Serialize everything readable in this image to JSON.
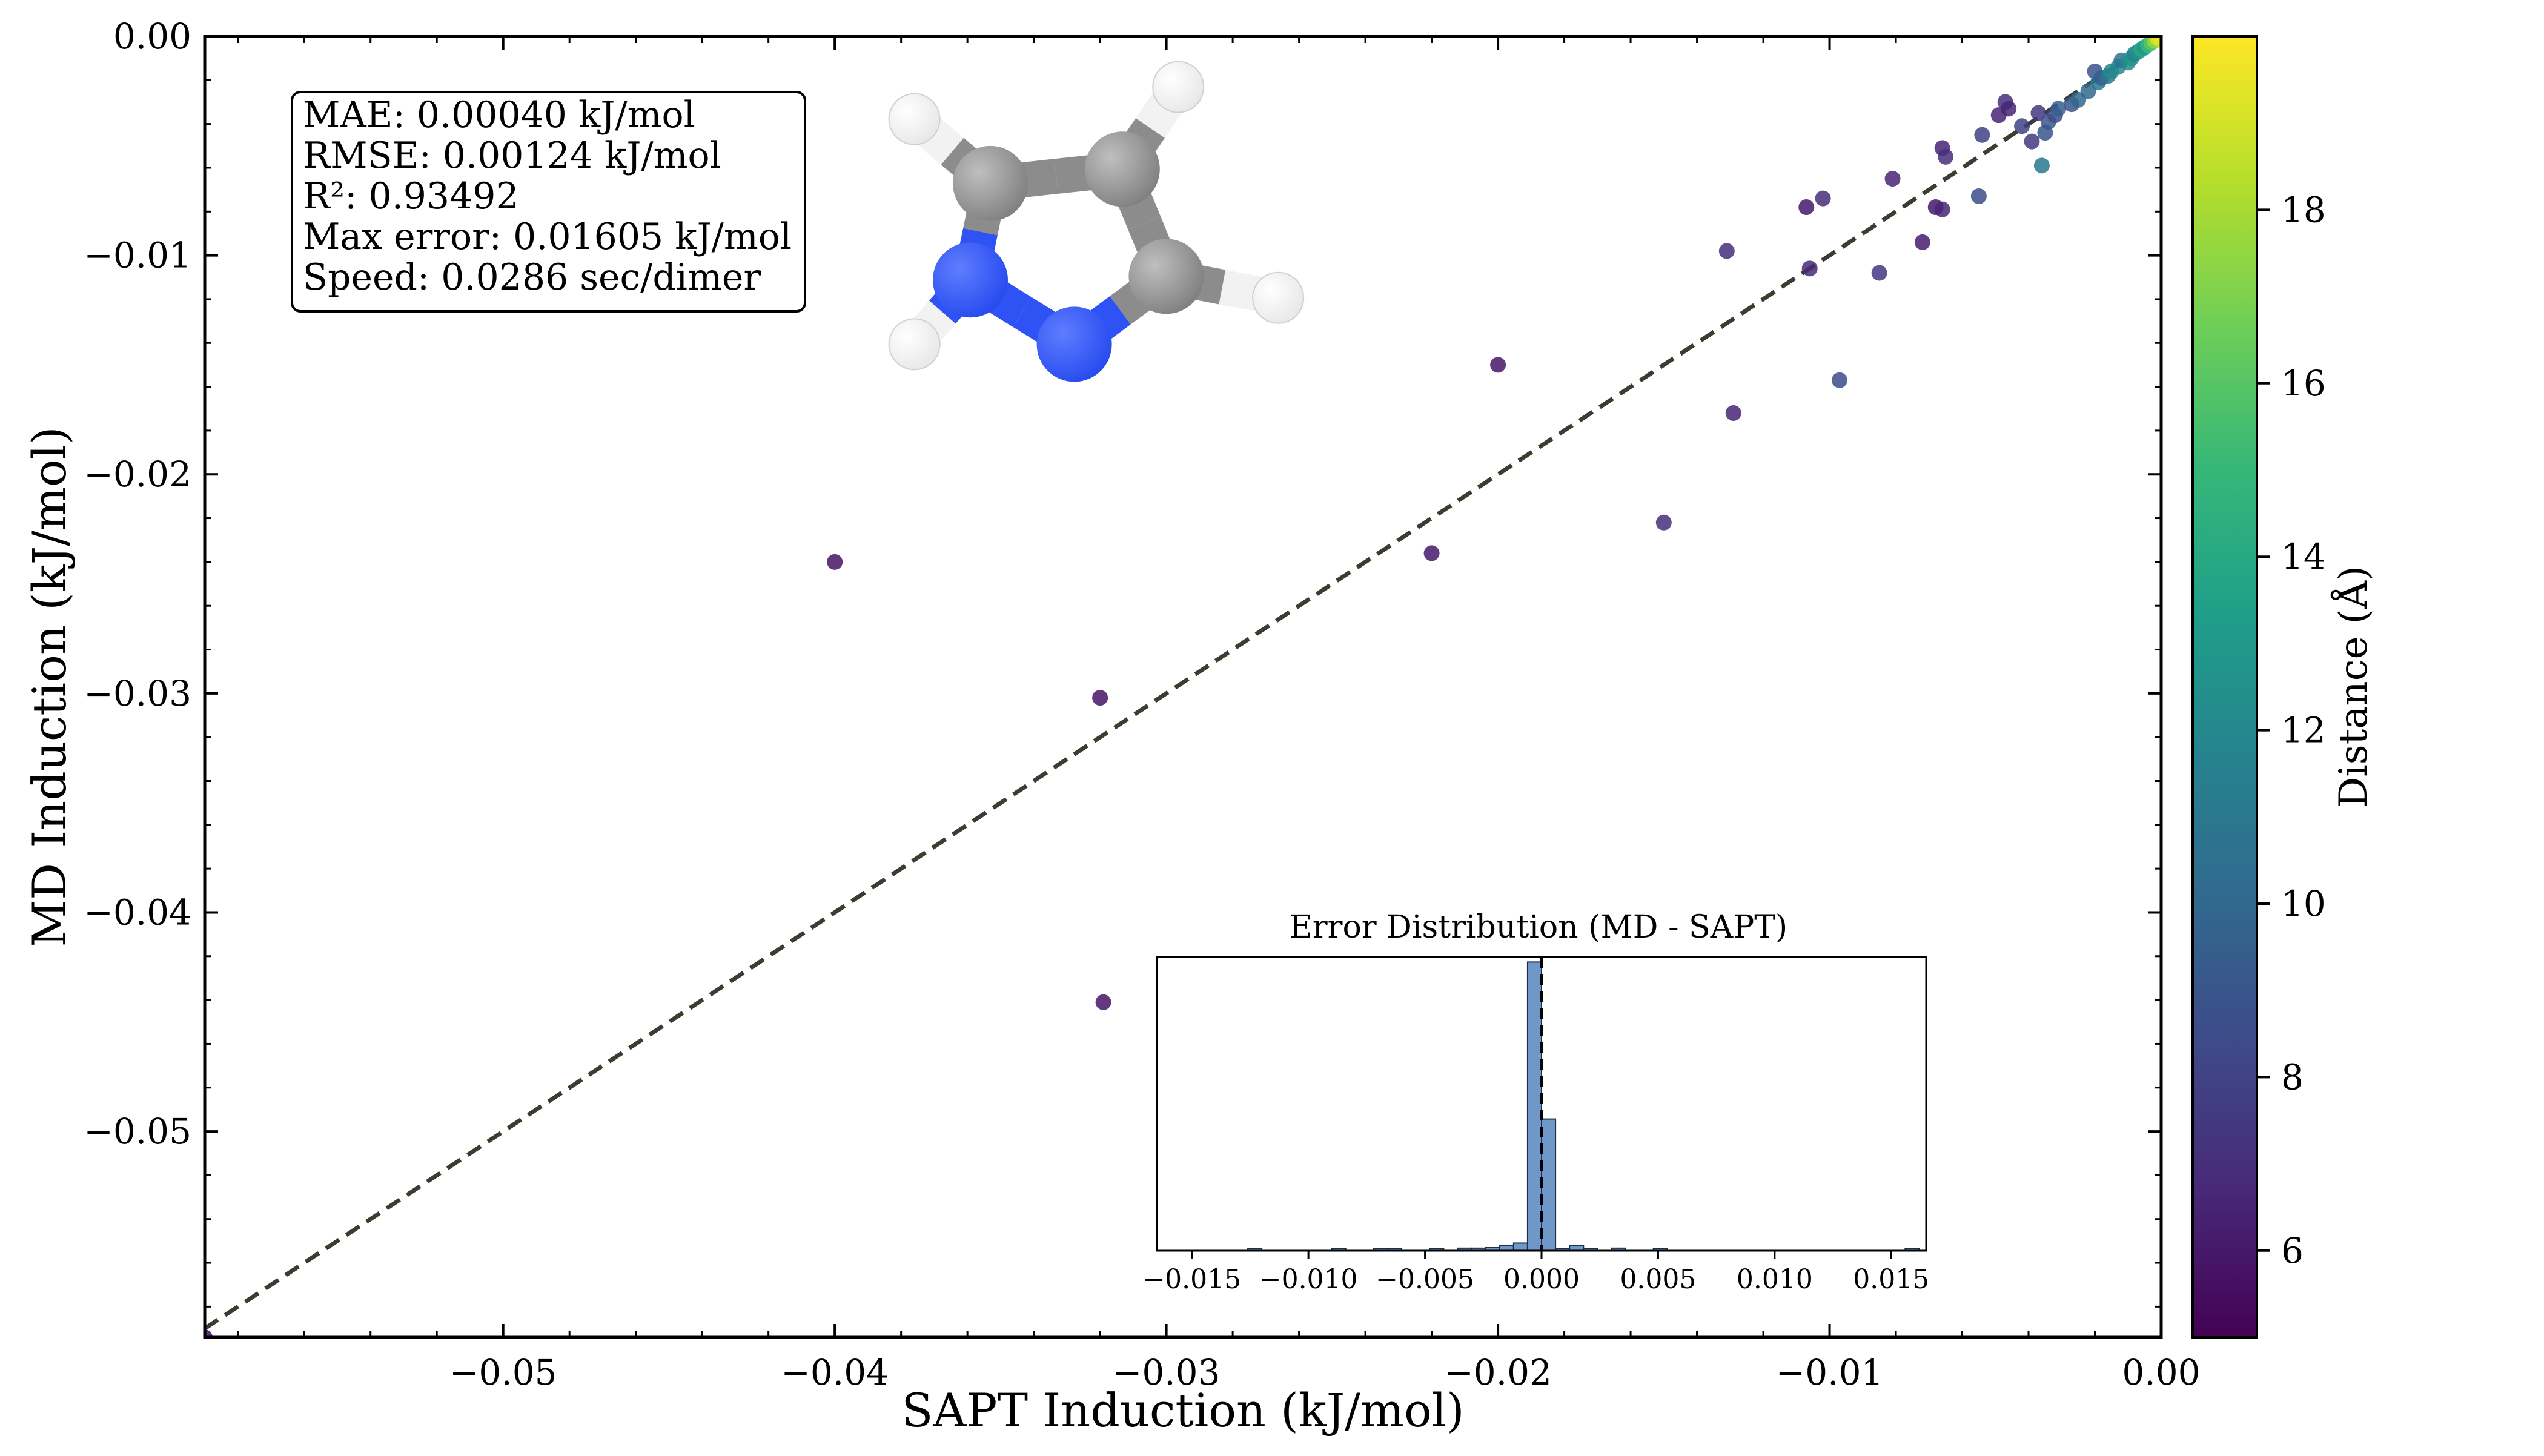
{
  "chart_data": {
    "type": "scatter",
    "xlabel": "SAPT Induction (kJ/mol)",
    "ylabel": "MD Induction (kJ/mol)",
    "xlim": [
      -0.059,
      0.0
    ],
    "ylim": [
      -0.0594,
      0.0
    ],
    "x_ticks": [
      {
        "v": -0.05,
        "label": "−0.05"
      },
      {
        "v": -0.04,
        "label": "−0.04"
      },
      {
        "v": -0.03,
        "label": "−0.03"
      },
      {
        "v": -0.02,
        "label": "−0.02"
      },
      {
        "v": -0.01,
        "label": "−0.01"
      },
      {
        "v": 0.0,
        "label": "0.00"
      }
    ],
    "y_ticks": [
      {
        "v": 0.0,
        "label": "0.00"
      },
      {
        "v": -0.01,
        "label": "−0.01"
      },
      {
        "v": -0.02,
        "label": "−0.02"
      },
      {
        "v": -0.03,
        "label": "−0.03"
      },
      {
        "v": -0.04,
        "label": "−0.04"
      },
      {
        "v": -0.05,
        "label": "−0.05"
      }
    ],
    "grid": false,
    "reference_line": "y = x",
    "colorbar": {
      "label": "Distance (Å)",
      "range": [
        5,
        20
      ],
      "colormap": "viridis",
      "ticks": [
        {
          "v": 6,
          "label": "6"
        },
        {
          "v": 8,
          "label": "8"
        },
        {
          "v": 10,
          "label": "10"
        },
        {
          "v": 12,
          "label": "12"
        },
        {
          "v": 14,
          "label": "14"
        },
        {
          "v": 16,
          "label": "16"
        },
        {
          "v": 18,
          "label": "18"
        }
      ]
    },
    "points": [
      {
        "x": -0.059,
        "y": -0.0594,
        "d": 5.5
      },
      {
        "x": -0.04,
        "y": -0.024,
        "d": 5.8
      },
      {
        "x": -0.032,
        "y": -0.0302,
        "d": 5.8
      },
      {
        "x": -0.0319,
        "y": -0.0441,
        "d": 5.9
      },
      {
        "x": -0.022,
        "y": -0.0236,
        "d": 6.0
      },
      {
        "x": -0.02,
        "y": -0.015,
        "d": 5.9
      },
      {
        "x": -0.015,
        "y": -0.0222,
        "d": 7.0
      },
      {
        "x": -0.0131,
        "y": -0.0098,
        "d": 7.0
      },
      {
        "x": -0.0129,
        "y": -0.0172,
        "d": 6.5
      },
      {
        "x": -0.0107,
        "y": -0.0078,
        "d": 6.0
      },
      {
        "x": -0.0106,
        "y": -0.0106,
        "d": 6.8
      },
      {
        "x": -0.0102,
        "y": -0.0074,
        "d": 7.0
      },
      {
        "x": -0.0097,
        "y": -0.0157,
        "d": 8.5
      },
      {
        "x": -0.0085,
        "y": -0.0108,
        "d": 7.5
      },
      {
        "x": -0.0081,
        "y": -0.0065,
        "d": 6.5
      },
      {
        "x": -0.0072,
        "y": -0.0094,
        "d": 6.2
      },
      {
        "x": -0.0068,
        "y": -0.0078,
        "d": 6.0
      },
      {
        "x": -0.0066,
        "y": -0.0079,
        "d": 6.5
      },
      {
        "x": -0.0066,
        "y": -0.0051,
        "d": 6.5
      },
      {
        "x": -0.0065,
        "y": -0.0055,
        "d": 7.0
      },
      {
        "x": -0.0055,
        "y": -0.0073,
        "d": 8.5
      },
      {
        "x": -0.0054,
        "y": -0.0045,
        "d": 8.0
      },
      {
        "x": -0.0049,
        "y": -0.0036,
        "d": 6.5
      },
      {
        "x": -0.0047,
        "y": -0.003,
        "d": 7.0
      },
      {
        "x": -0.0046,
        "y": -0.0033,
        "d": 6.5
      },
      {
        "x": -0.0042,
        "y": -0.0041,
        "d": 8.0
      },
      {
        "x": -0.0039,
        "y": -0.0048,
        "d": 7.5
      },
      {
        "x": -0.0037,
        "y": -0.0035,
        "d": 7.5
      },
      {
        "x": -0.0036,
        "y": -0.0059,
        "d": 11.0
      },
      {
        "x": -0.0035,
        "y": -0.0044,
        "d": 9.0
      },
      {
        "x": -0.0034,
        "y": -0.0039,
        "d": 9.0
      },
      {
        "x": -0.0032,
        "y": -0.0036,
        "d": 8.5
      },
      {
        "x": -0.0031,
        "y": -0.0033,
        "d": 9.5
      },
      {
        "x": -0.0027,
        "y": -0.0031,
        "d": 9.0
      },
      {
        "x": -0.0025,
        "y": -0.0029,
        "d": 10.0
      },
      {
        "x": -0.0022,
        "y": -0.0025,
        "d": 10.0
      },
      {
        "x": -0.002,
        "y": -0.0016,
        "d": 9.0
      },
      {
        "x": -0.0019,
        "y": -0.0021,
        "d": 11.0
      },
      {
        "x": -0.0018,
        "y": -0.0019,
        "d": 9.5
      },
      {
        "x": -0.0016,
        "y": -0.0018,
        "d": 11.0
      },
      {
        "x": -0.0015,
        "y": -0.0016,
        "d": 12.0
      },
      {
        "x": -0.0013,
        "y": -0.0014,
        "d": 12.0
      },
      {
        "x": -0.0012,
        "y": -0.0011,
        "d": 10.5
      },
      {
        "x": -0.001,
        "y": -0.0012,
        "d": 12.0
      },
      {
        "x": -0.0009,
        "y": -0.001,
        "d": 13.0
      },
      {
        "x": -0.0008,
        "y": -0.0008,
        "d": 11.5
      },
      {
        "x": -0.0007,
        "y": -0.0007,
        "d": 12.5
      },
      {
        "x": -0.0006,
        "y": -0.0006,
        "d": 14.0
      },
      {
        "x": -0.0005,
        "y": -0.0005,
        "d": 13.0
      },
      {
        "x": -0.0004,
        "y": -0.0004,
        "d": 15.0
      },
      {
        "x": -0.0003,
        "y": -0.0003,
        "d": 16.0
      },
      {
        "x": -0.0002,
        "y": -0.0002,
        "d": 17.5
      },
      {
        "x": -0.0001,
        "y": -0.0001,
        "d": 19.0
      },
      {
        "x": -5e-05,
        "y": -5e-05,
        "d": 19.5
      }
    ],
    "stats_box": [
      "MAE: 0.00040 kJ/mol",
      "RMSE: 0.00124 kJ/mol",
      "R²: 0.93492",
      "Max error: 0.01605 kJ/mol",
      "Speed: 0.0286 sec/dimer"
    ],
    "inset": {
      "type": "bar",
      "title": "Error Distribution (MD - SAPT)",
      "xlim": [
        -0.0165,
        0.0165
      ],
      "ylim": [
        0,
        58
      ],
      "bin_width": 0.0006,
      "x_ticks": [
        {
          "v": -0.015,
          "label": "−0.015"
        },
        {
          "v": -0.01,
          "label": "−0.010"
        },
        {
          "v": -0.005,
          "label": "−0.005"
        },
        {
          "v": 0.0,
          "label": "0.000"
        },
        {
          "v": 0.005,
          "label": "0.005"
        },
        {
          "v": 0.01,
          "label": "0.010"
        },
        {
          "v": 0.015,
          "label": "0.015"
        }
      ],
      "reference_line_x": 0.0,
      "bars": [
        {
          "x": -0.0123,
          "count": 0.4
        },
        {
          "x": -0.0087,
          "count": 0.4
        },
        {
          "x": -0.0069,
          "count": 0.4
        },
        {
          "x": -0.0063,
          "count": 0.4
        },
        {
          "x": -0.0045,
          "count": 0.4
        },
        {
          "x": -0.0033,
          "count": 0.5
        },
        {
          "x": -0.0027,
          "count": 0.5
        },
        {
          "x": -0.0021,
          "count": 0.6
        },
        {
          "x": -0.0015,
          "count": 1.0
        },
        {
          "x": -0.0009,
          "count": 1.5
        },
        {
          "x": -0.0003,
          "count": 57
        },
        {
          "x": 0.0003,
          "count": 26
        },
        {
          "x": 0.0009,
          "count": 0.4
        },
        {
          "x": 0.0015,
          "count": 1.0
        },
        {
          "x": 0.0021,
          "count": 0.4
        },
        {
          "x": 0.0033,
          "count": 0.5
        },
        {
          "x": 0.0051,
          "count": 0.4
        },
        {
          "x": 0.0159,
          "count": 0.4
        }
      ]
    },
    "molecule": {
      "name": "pyrazole",
      "atoms": [
        {
          "el": "H",
          "x": 0.06,
          "y": 0.13
        },
        {
          "el": "H",
          "x": 0.72,
          "y": 0.04
        },
        {
          "el": "H",
          "x": 0.97,
          "y": 0.63
        },
        {
          "el": "H",
          "x": 0.06,
          "y": 0.76
        },
        {
          "el": "C",
          "x": 0.25,
          "y": 0.31
        },
        {
          "el": "C",
          "x": 0.58,
          "y": 0.27
        },
        {
          "el": "C",
          "x": 0.69,
          "y": 0.57
        },
        {
          "el": "N",
          "x": 0.2,
          "y": 0.58
        },
        {
          "el": "N",
          "x": 0.46,
          "y": 0.76
        }
      ],
      "bonds": [
        [
          0,
          4
        ],
        [
          1,
          5
        ],
        [
          2,
          6
        ],
        [
          3,
          7
        ],
        [
          4,
          5
        ],
        [
          5,
          6
        ],
        [
          6,
          8
        ],
        [
          8,
          7
        ],
        [
          7,
          4
        ]
      ],
      "colors": {
        "C": "#8c8c8c",
        "N": "#2f52f5",
        "H": "#ffffff"
      }
    }
  }
}
